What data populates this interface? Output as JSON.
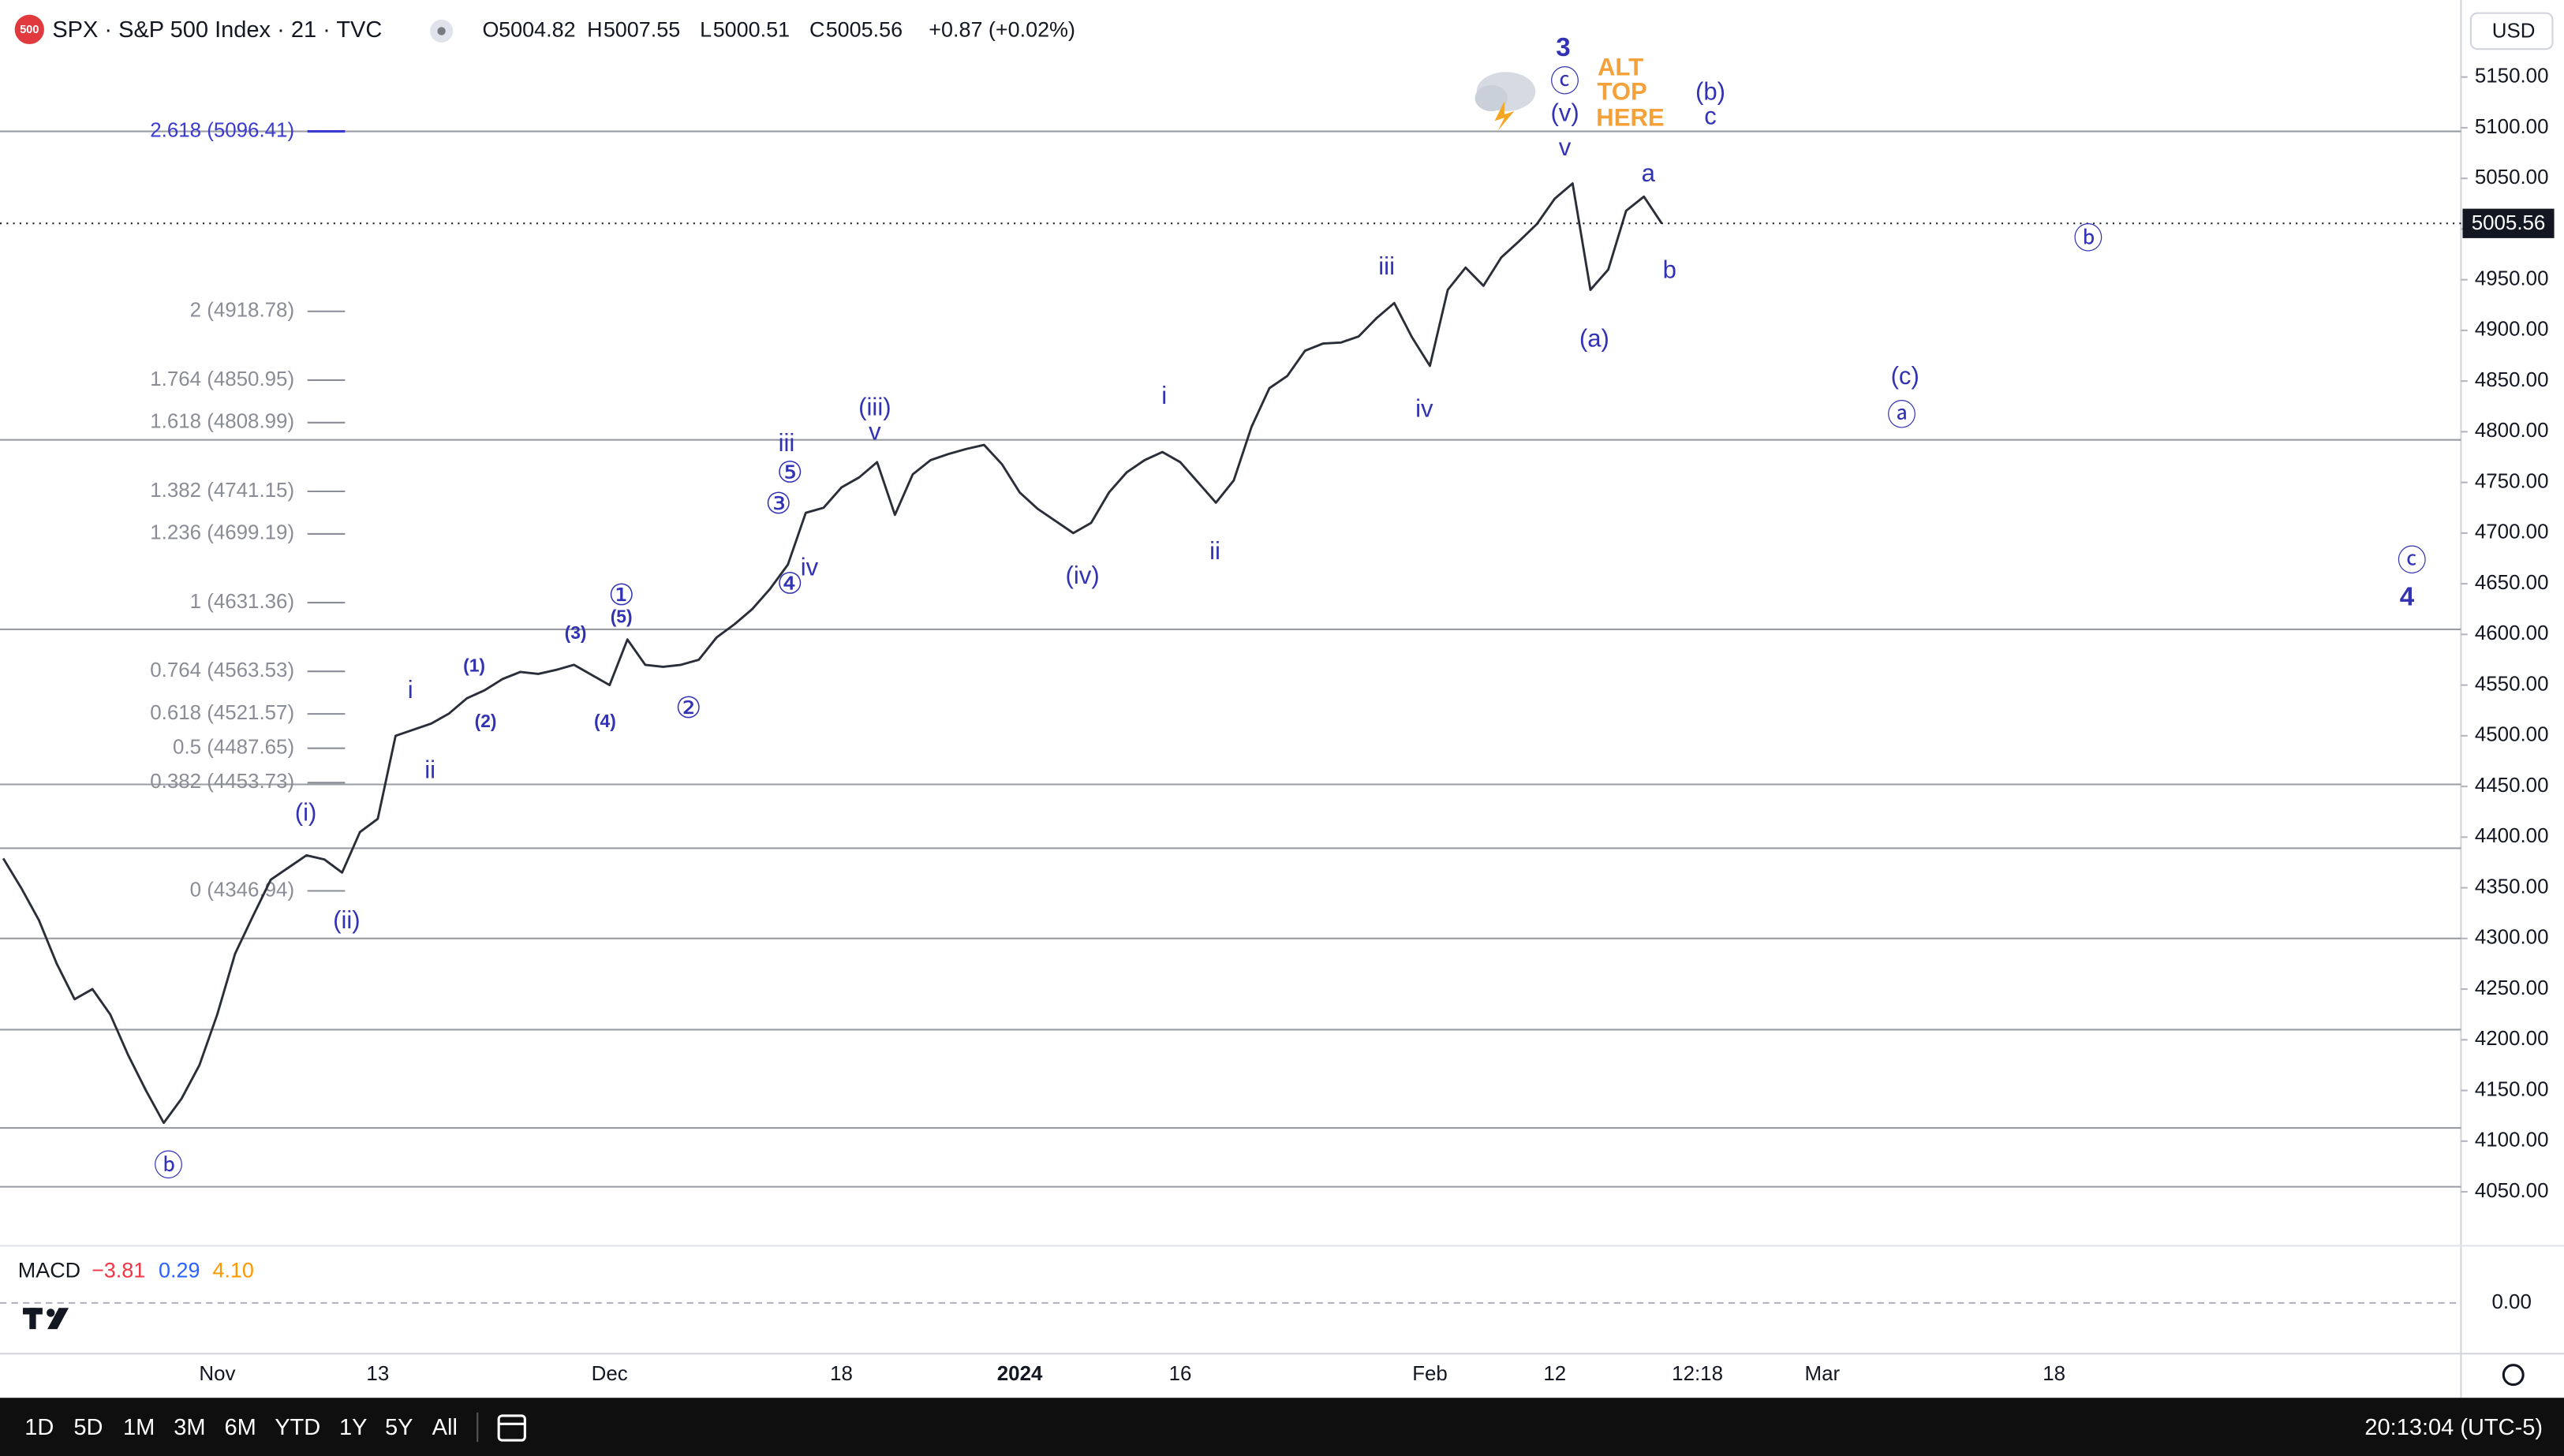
{
  "header": {
    "logo": "500",
    "symbol": "SPX · S&P 500 Index · 21 · TVC",
    "open_label": "O",
    "open": "5004.82",
    "high_label": "H",
    "high": "5007.55",
    "low_label": "L",
    "low": "5000.51",
    "close_label": "C",
    "close": "5005.56",
    "change": "+0.87 (+0.02%)"
  },
  "currency": "USD",
  "chart_data": {
    "type": "line",
    "categories": [
      null,
      null,
      null,
      null,
      null,
      null,
      null,
      null,
      null,
      null,
      null,
      null,
      "Nov",
      null,
      null,
      null,
      null,
      null,
      null,
      null,
      null,
      "13",
      null,
      null,
      null,
      null,
      null,
      null,
      null,
      null,
      null,
      null,
      null,
      null,
      "Dec",
      null,
      null,
      null,
      null,
      null,
      null,
      null,
      null,
      null,
      null,
      null,
      null,
      "18",
      null,
      null,
      null,
      null,
      null,
      null,
      null,
      null,
      null,
      "2024",
      null,
      null,
      null,
      null,
      null,
      null,
      null,
      null,
      "16",
      null,
      null,
      null,
      null,
      null,
      null,
      null,
      null,
      null,
      null,
      null,
      null,
      null,
      "Feb",
      null,
      null,
      null,
      null,
      null,
      null,
      "12",
      null,
      null,
      null,
      null,
      null,
      null,
      null,
      "12:18",
      null,
      null,
      null,
      null,
      null,
      null,
      "Mar",
      null,
      null,
      null,
      null,
      null,
      null,
      null,
      null,
      null,
      null,
      null,
      null,
      "18",
      null,
      null,
      null,
      null,
      null,
      null,
      null,
      null,
      null,
      null,
      null,
      null,
      null,
      null,
      null,
      null,
      null,
      null,
      null,
      null,
      null,
      null
    ],
    "values": [
      4379,
      4350,
      4318,
      4275,
      4240,
      4250,
      4225,
      4185,
      4150,
      4118,
      4142,
      4175,
      4225,
      4285,
      4322,
      4358,
      4370,
      4382,
      4378,
      4365,
      4405,
      4418,
      4500,
      4506,
      4512,
      4522,
      4537,
      4545,
      4556,
      4563,
      4561,
      4565,
      4570,
      4560,
      4550,
      4595,
      4570,
      4568,
      4570,
      4575,
      4597,
      4610,
      4625,
      4645,
      4669,
      4720,
      4725,
      4745,
      4755,
      4770,
      4718,
      4758,
      4772,
      4778,
      4783,
      4787,
      4768,
      4740,
      4724,
      4712,
      4700,
      4710,
      4740,
      4760,
      4772,
      4780,
      4770,
      4750,
      4730,
      4752,
      4805,
      4843,
      4855,
      4880,
      4887,
      4888,
      4894,
      4912,
      4927,
      4893,
      4865,
      4940,
      4962,
      4944,
      4972,
      4988,
      5005,
      5030,
      5045,
      4940,
      4960,
      5018,
      5032,
      5005.56,
      null,
      null,
      null,
      null,
      null,
      null,
      null,
      null,
      null,
      null,
      null,
      null,
      null,
      null,
      null,
      null,
      null,
      null,
      null,
      null,
      null,
      null,
      null,
      null,
      null,
      null,
      null,
      null,
      null,
      null,
      null,
      null,
      null,
      null,
      null,
      null,
      null,
      null,
      null,
      null,
      null,
      null,
      null,
      null
    ],
    "color": "#2a2e39",
    "ylim": [
      4000,
      5226
    ],
    "yticks": [
      {
        "value": 4050,
        "label": "4050.00"
      },
      {
        "value": 4100,
        "label": "4100.00"
      },
      {
        "value": 4150,
        "label": "4150.00"
      },
      {
        "value": 4200,
        "label": "4200.00"
      },
      {
        "value": 4250,
        "label": "4250.00"
      },
      {
        "value": 4300,
        "label": "4300.00"
      },
      {
        "value": 4350,
        "label": "4350.00"
      },
      {
        "value": 4400,
        "label": "4400.00"
      },
      {
        "value": 4450,
        "label": "4450.00"
      },
      {
        "value": 4500,
        "label": "4500.00"
      },
      {
        "value": 4550,
        "label": "4550.00"
      },
      {
        "value": 4600,
        "label": "4600.00"
      },
      {
        "value": 4650,
        "label": "4650.00"
      },
      {
        "value": 4700,
        "label": "4700.00"
      },
      {
        "value": 4750,
        "label": "4750.00"
      },
      {
        "value": 4800,
        "label": "4800.00"
      },
      {
        "value": 4850,
        "label": "4850.00"
      },
      {
        "value": 4900,
        "label": "4900.00"
      },
      {
        "value": 4950,
        "label": "4950.00"
      },
      {
        "value": 5000,
        "label": "5000.00"
      },
      {
        "value": 5050,
        "label": "5050.00"
      },
      {
        "value": 5100,
        "label": "5100.00"
      },
      {
        "value": 5150,
        "label": "5150.00"
      }
    ],
    "last_price": 5005.56,
    "horizontal_lines": [
      5096.41,
      4792,
      4605,
      4452,
      4389,
      4300,
      4210,
      4113,
      4055
    ],
    "fib_levels": [
      {
        "label": "2.618 (5096.41)",
        "value": 5096.41
      },
      {
        "label": "2 (4918.78)",
        "value": 4918.78
      },
      {
        "label": "1.764 (4850.95)",
        "value": 4850.95
      },
      {
        "label": "1.618 (4808.99)",
        "value": 4808.99
      },
      {
        "label": "1.382 (4741.15)",
        "value": 4741.15
      },
      {
        "label": "1.236 (4699.19)",
        "value": 4699.19
      },
      {
        "label": "1 (4631.36)",
        "value": 4631.36
      },
      {
        "label": "0.764 (4563.53)",
        "value": 4563.53
      },
      {
        "label": "0.618 (4521.57)",
        "value": 4521.57
      },
      {
        "label": "0.5 (4487.65)",
        "value": 4487.65
      },
      {
        "label": "0.382 (4453.73)",
        "value": 4453.73
      },
      {
        "label": "0 (4346.94)",
        "value": 4346.94
      }
    ],
    "annotations": [
      "3",
      "ⓒ",
      "(v)",
      "ALT",
      "TOP",
      "HERE",
      "(b)",
      "c",
      "v",
      "a",
      "b",
      "(a)",
      "ⓑ",
      "(c)",
      "ⓐ",
      "ⓒ",
      "4",
      "iii",
      "iv",
      "i",
      "ii",
      "(iv)",
      "(iii)",
      "v",
      "iii",
      "⑤",
      "③",
      "iv",
      "④",
      "①",
      "(5)",
      "(3)",
      "(1)",
      "i",
      "(2)",
      "(4)",
      "②",
      "ii",
      "(i)",
      "(ii)",
      "ⓑ"
    ],
    "annotation_color": "#3232b4",
    "alt_color": "#f5a13a",
    "fib_color": "#8a8d96",
    "line_color": "#9a9ca3"
  },
  "macd": {
    "title": "MACD",
    "values": [
      "−3.81",
      "0.29",
      "4.10"
    ],
    "colors": [
      "#f23645",
      "#2962ff",
      "#ff9800"
    ],
    "zero": {
      "value": 0,
      "label": "0.00"
    }
  },
  "toolbar": {
    "ranges": [
      "1D",
      "5D",
      "1M",
      "3M",
      "6M",
      "YTD",
      "1Y",
      "5Y",
      "All"
    ],
    "clock": "20:13:04 (UTC-5)"
  }
}
